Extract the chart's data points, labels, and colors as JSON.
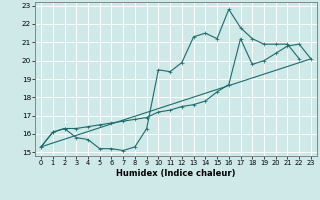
{
  "xlabel": "Humidex (Indice chaleur)",
  "xlim": [
    -0.5,
    23.5
  ],
  "ylim": [
    14.8,
    23.2
  ],
  "yticks": [
    15,
    16,
    17,
    18,
    19,
    20,
    21,
    22,
    23
  ],
  "xticks": [
    0,
    1,
    2,
    3,
    4,
    5,
    6,
    7,
    8,
    9,
    10,
    11,
    12,
    13,
    14,
    15,
    16,
    17,
    18,
    19,
    20,
    21,
    22,
    23
  ],
  "bg_color": "#cfe8e8",
  "grid_color": "#b8d8d8",
  "line_color": "#1a6b6b",
  "line1": {
    "x": [
      0,
      1,
      2,
      3,
      4,
      5,
      6,
      7,
      8,
      9,
      10,
      11,
      12,
      13,
      14,
      15,
      16,
      17,
      18,
      19,
      20,
      21,
      22
    ],
    "y": [
      15.3,
      16.1,
      16.3,
      15.8,
      15.7,
      15.2,
      15.2,
      15.1,
      15.3,
      16.3,
      19.5,
      19.4,
      19.9,
      21.3,
      21.5,
      21.2,
      22.8,
      21.8,
      21.2,
      20.9,
      20.9,
      20.9,
      20.1
    ]
  },
  "line2": {
    "x": [
      0,
      1,
      2,
      3,
      4,
      5,
      6,
      7,
      8,
      9,
      10,
      11,
      12,
      13,
      14,
      15,
      16,
      17,
      18,
      19,
      20,
      21,
      22,
      23
    ],
    "y": [
      15.3,
      16.1,
      16.3,
      16.3,
      16.4,
      16.5,
      16.6,
      16.7,
      16.8,
      16.9,
      17.2,
      17.3,
      17.5,
      17.6,
      17.8,
      18.3,
      18.7,
      21.2,
      19.8,
      20.0,
      20.4,
      20.8,
      20.9,
      20.1
    ]
  },
  "line3": {
    "x": [
      0,
      23
    ],
    "y": [
      15.3,
      20.1
    ]
  }
}
